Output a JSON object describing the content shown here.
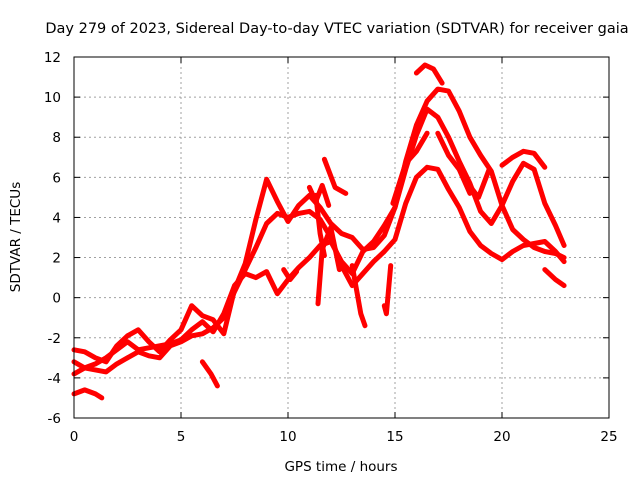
{
  "chart_data": {
    "type": "scatter",
    "title": "Day 279 of 2023, Sidereal Day-to-day VTEC variation (SDTVAR) for receiver gaia",
    "xlabel": "GPS time / hours",
    "ylabel": "SDTVAR / TECUs",
    "xlim": [
      0,
      25
    ],
    "ylim": [
      -6,
      12
    ],
    "xticks": [
      0,
      5,
      10,
      15,
      20,
      25
    ],
    "yticks": [
      -6,
      -4,
      -2,
      0,
      2,
      4,
      6,
      8,
      10,
      12
    ],
    "xtick_labels": [
      "0",
      "5",
      "10",
      "15",
      "20",
      "25"
    ],
    "ytick_labels": [
      "-6",
      "-4",
      "-2",
      "0",
      "2",
      "4",
      "6",
      "8",
      "10",
      "12"
    ],
    "grid": true,
    "marker": "+",
    "color": "#ff0000",
    "series": [
      {
        "name": "track-1",
        "x": [
          0.0,
          0.5,
          1.0,
          1.5,
          2.0,
          2.5,
          3.0,
          3.5,
          4.0,
          4.5,
          5.0,
          5.5,
          6.0,
          6.5,
          7.0,
          7.5,
          8.0,
          8.5,
          9.0,
          9.5,
          10.0,
          10.5,
          11.0,
          11.5,
          12.0,
          12.5,
          13.0,
          13.5,
          14.0,
          14.5,
          15.0,
          15.5,
          16.0,
          16.5,
          17.0,
          17.5,
          18.0,
          18.5,
          19.0,
          19.5,
          20.0,
          20.5,
          21.0,
          21.5,
          22.0,
          22.5,
          22.9
        ],
        "y": [
          -3.2,
          -3.5,
          -3.3,
          -3.0,
          -2.6,
          -2.2,
          -2.6,
          -2.5,
          -2.4,
          -2.3,
          -2.1,
          -1.6,
          -1.2,
          -1.7,
          -0.8,
          0.6,
          1.2,
          1.0,
          1.3,
          0.2,
          0.9,
          1.5,
          2.0,
          2.6,
          2.8,
          1.8,
          1.2,
          2.3,
          2.8,
          3.6,
          4.5,
          6.8,
          8.6,
          9.8,
          10.4,
          10.3,
          9.3,
          8.0,
          7.1,
          6.3,
          4.6,
          3.4,
          2.9,
          2.5,
          2.3,
          2.2,
          2.0
        ]
      },
      {
        "name": "track-2",
        "x": [
          0.0,
          0.5,
          1.0,
          1.5,
          2.0,
          2.5,
          3.0,
          3.5,
          4.0,
          4.5,
          5.0,
          5.5,
          6.0,
          6.5,
          7.0,
          7.5,
          8.0,
          8.5,
          9.0,
          9.5,
          10.0,
          10.5,
          11.0,
          11.5,
          12.0,
          12.5,
          13.0,
          13.5,
          14.0,
          14.5,
          15.0,
          15.5,
          16.0,
          16.5,
          17.0,
          17.5,
          18.0,
          18.5,
          19.0,
          19.5,
          20.0,
          20.5,
          21.0,
          21.5,
          22.0,
          22.5,
          22.9
        ],
        "y": [
          -3.8,
          -3.5,
          -3.6,
          -3.7,
          -3.3,
          -3.0,
          -2.7,
          -2.9,
          -3.0,
          -2.4,
          -2.2,
          -1.9,
          -1.8,
          -1.5,
          -1.0,
          0.3,
          1.4,
          2.5,
          3.7,
          4.2,
          4.0,
          4.2,
          4.3,
          3.9,
          3.0,
          1.6,
          0.6,
          1.2,
          1.8,
          2.3,
          2.9,
          4.7,
          6.0,
          6.5,
          6.4,
          5.4,
          4.5,
          3.3,
          2.6,
          2.2,
          1.9,
          2.3,
          2.6,
          2.7,
          2.8,
          2.3,
          1.8
        ]
      },
      {
        "name": "track-3",
        "x": [
          0.0,
          0.5,
          1.0,
          1.5,
          2.0,
          2.5,
          3.0,
          3.5,
          4.0,
          4.5,
          5.0,
          5.5,
          6.0,
          6.5,
          7.0,
          7.5,
          8.0,
          8.5,
          9.0,
          9.5,
          10.0,
          10.5,
          11.0,
          11.5,
          12.0,
          12.5,
          13.0,
          13.5,
          14.0,
          14.5,
          15.0,
          15.5,
          16.0,
          16.5,
          17.0,
          17.5,
          18.0,
          18.5,
          19.0,
          19.5,
          20.0,
          20.5,
          21.0,
          21.5,
          22.0,
          22.5,
          22.9
        ],
        "y": [
          -2.6,
          -2.7,
          -3.0,
          -3.2,
          -2.4,
          -1.9,
          -1.6,
          -2.2,
          -2.7,
          -2.1,
          -1.6,
          -0.4,
          -0.9,
          -1.1,
          -1.8,
          0.4,
          1.7,
          3.9,
          5.9,
          4.8,
          3.8,
          4.6,
          5.1,
          4.5,
          3.7,
          3.2,
          3.0,
          2.4,
          2.5,
          3.1,
          4.5,
          6.4,
          8.1,
          9.4,
          9.0,
          8.0,
          6.8,
          5.7,
          4.3,
          3.7,
          4.6,
          5.8,
          6.7,
          6.4,
          4.7,
          3.6,
          2.6
        ]
      },
      {
        "name": "track-4",
        "x": [
          0.0,
          0.5,
          1.0,
          1.3
        ],
        "y": [
          -4.8,
          -4.6,
          -4.8,
          -5.0
        ]
      },
      {
        "name": "track-5",
        "x": [
          6.0,
          6.4,
          6.7
        ],
        "y": [
          -3.2,
          -3.8,
          -4.4
        ]
      },
      {
        "name": "track-6",
        "x": [
          11.4,
          11.6,
          12.0,
          12.4
        ],
        "y": [
          -0.3,
          2.4,
          3.5,
          1.4
        ]
      },
      {
        "name": "track-7",
        "x": [
          11.3,
          11.5,
          11.7
        ],
        "y": [
          5.1,
          3.2,
          2.1
        ]
      },
      {
        "name": "track-8",
        "x": [
          11.0,
          11.3,
          11.6,
          11.9
        ],
        "y": [
          5.5,
          4.8,
          5.6,
          4.6
        ]
      },
      {
        "name": "track-9",
        "x": [
          13.0,
          13.2,
          13.4,
          13.6
        ],
        "y": [
          1.6,
          0.4,
          -0.8,
          -1.4
        ]
      },
      {
        "name": "track-10",
        "x": [
          14.5,
          14.6,
          14.8
        ],
        "y": [
          -0.4,
          -0.8,
          1.6
        ]
      },
      {
        "name": "track-11",
        "x": [
          16.0,
          16.4,
          16.8,
          17.2
        ],
        "y": [
          11.2,
          11.6,
          11.4,
          10.7
        ]
      },
      {
        "name": "track-12",
        "x": [
          11.7,
          12.2,
          12.7
        ],
        "y": [
          6.9,
          5.5,
          5.2
        ]
      },
      {
        "name": "track-13",
        "x": [
          9.8,
          10.1,
          10.4
        ],
        "y": [
          1.4,
          0.9,
          1.3
        ]
      },
      {
        "name": "track-14",
        "x": [
          18.4,
          18.9,
          19.4
        ],
        "y": [
          5.7,
          5.0,
          6.4
        ]
      },
      {
        "name": "track-15",
        "x": [
          20.0,
          20.5,
          21.0,
          21.5,
          22.0
        ],
        "y": [
          6.6,
          7.0,
          7.3,
          7.2,
          6.5
        ]
      },
      {
        "name": "track-16",
        "x": [
          22.0,
          22.5,
          22.9
        ],
        "y": [
          1.4,
          0.9,
          0.6
        ]
      },
      {
        "name": "track-17",
        "x": [
          14.9,
          15.5,
          16.0,
          16.5
        ],
        "y": [
          4.7,
          6.7,
          7.3,
          8.2
        ]
      },
      {
        "name": "track-18",
        "x": [
          17.0,
          17.5,
          18.0,
          18.5
        ],
        "y": [
          8.2,
          7.1,
          6.4,
          5.2
        ]
      }
    ]
  }
}
